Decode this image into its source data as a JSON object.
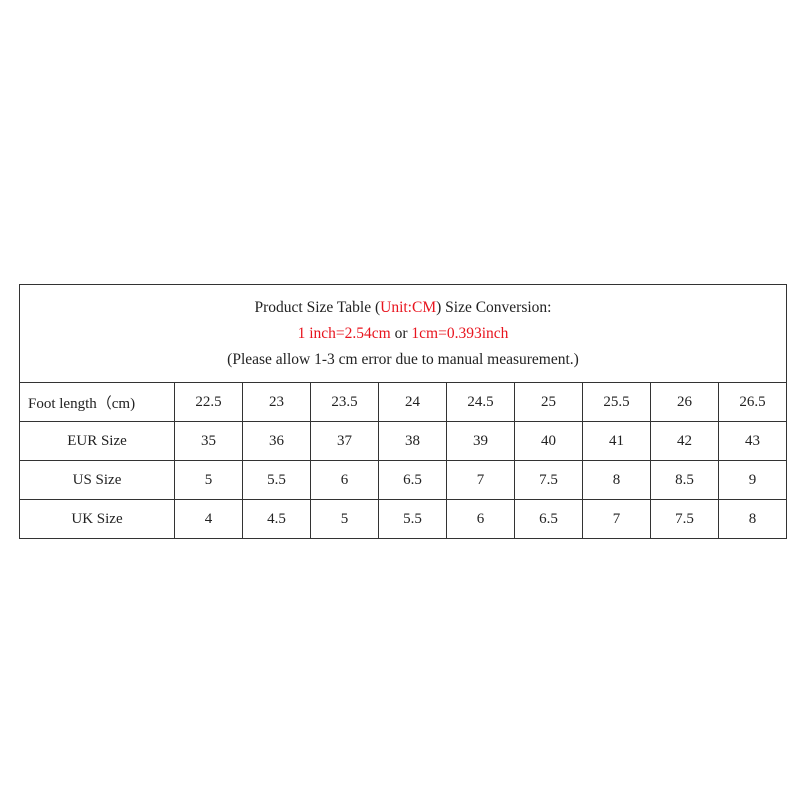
{
  "header": {
    "line1_a": "Product Size Table (",
    "line1_unit": "Unit:CM",
    "line1_b": ") Size Conversion:",
    "line2_a": "1 inch=2.54cm",
    "line2_or": " or ",
    "line2_b": "1cm=0.393inch",
    "line3": "(Please allow 1-3 cm error due to manual measurement.)"
  },
  "accent_color": "#e8141e",
  "rows": [
    {
      "label": "Foot length（cm)",
      "values": [
        "22.5",
        "23",
        "23.5",
        "24",
        "24.5",
        "25",
        "25.5",
        "26",
        "26.5"
      ]
    },
    {
      "label": "EUR Size",
      "values": [
        "35",
        "36",
        "37",
        "38",
        "39",
        "40",
        "41",
        "42",
        "43"
      ]
    },
    {
      "label": "US Size",
      "values": [
        "5",
        "5.5",
        "6",
        "6.5",
        "7",
        "7.5",
        "8",
        "8.5",
        "9"
      ]
    },
    {
      "label": "UK Size",
      "values": [
        "4",
        "4.5",
        "5",
        "5.5",
        "6",
        "6.5",
        "7",
        "7.5",
        "8"
      ]
    }
  ]
}
